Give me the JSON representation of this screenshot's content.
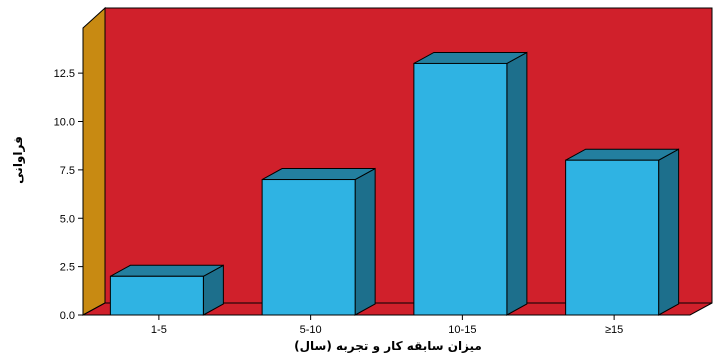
{
  "chart_data": {
    "type": "bar",
    "categories": [
      "1-5",
      "5-10",
      "10-15",
      "≥15"
    ],
    "values": [
      2,
      7,
      13,
      8
    ],
    "title": "",
    "xlabel": "میزان سابقه کار و تجربه (سال)",
    "ylabel": "فراوانی",
    "ylim": [
      0,
      14.5
    ],
    "yticks": [
      "0.0",
      "2.5",
      "5.0",
      "7.5",
      "10.0",
      "12.5"
    ],
    "ytick_values": [
      0,
      2.5,
      5,
      7.5,
      10,
      12.5
    ],
    "grid": false,
    "legend": "none",
    "style": "3d",
    "colors": {
      "back_wall": "#d0202b",
      "side_wall": "#c88a12",
      "floor": "#d0202b",
      "bar_front": "#2fb3e3",
      "bar_top": "#237f9f",
      "bar_side": "#1d6f8c",
      "outline": "#000000"
    }
  }
}
